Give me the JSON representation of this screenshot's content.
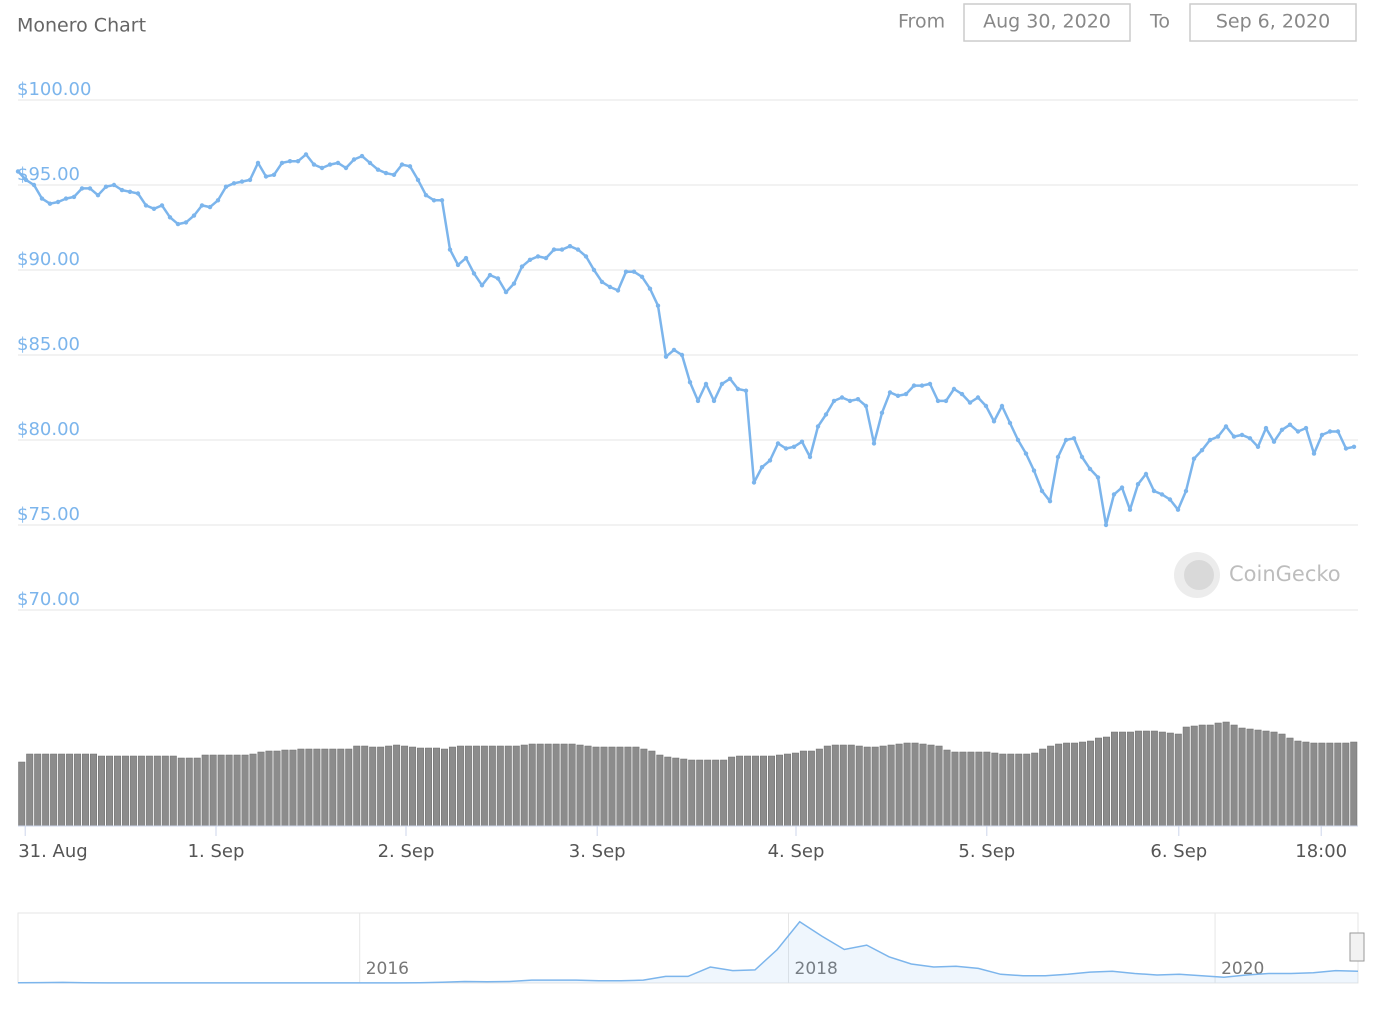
{
  "chart_data": [
    {
      "type": "line",
      "title": "Monero Chart",
      "range_from_label": "From",
      "range_from": "Aug 30, 2020",
      "range_to_label": "To",
      "range_to": "Sep 6, 2020",
      "watermark": "CoinGecko",
      "color": "#7cb5ec",
      "grid": true,
      "values": [
        95.8,
        95.3,
        95.0,
        94.2,
        93.9,
        94.0,
        94.2,
        94.3,
        94.8,
        94.8,
        94.4,
        94.9,
        95.0,
        94.7,
        94.6,
        94.5,
        93.8,
        93.6,
        93.8,
        93.1,
        92.7,
        92.8,
        93.2,
        93.8,
        93.7,
        94.1,
        94.9,
        95.1,
        95.2,
        95.3,
        96.3,
        95.5,
        95.6,
        96.3,
        96.4,
        96.4,
        96.8,
        96.2,
        96.0,
        96.2,
        96.3,
        96.0,
        96.5,
        96.7,
        96.3,
        95.9,
        95.7,
        95.6,
        96.2,
        96.1,
        95.3,
        94.4,
        94.1,
        94.1,
        91.2,
        90.3,
        90.7,
        89.8,
        89.1,
        89.7,
        89.5,
        88.7,
        89.2,
        90.2,
        90.6,
        90.8,
        90.7,
        91.2,
        91.2,
        91.4,
        91.2,
        90.8,
        90.0,
        89.3,
        89.0,
        88.8,
        89.9,
        89.9,
        89.6,
        88.9,
        87.9,
        84.9,
        85.3,
        85.0,
        83.4,
        82.3,
        83.3,
        82.3,
        83.3,
        83.6,
        83.0,
        82.9,
        77.5,
        78.4,
        78.8,
        79.8,
        79.5,
        79.6,
        79.9,
        79.0,
        80.8,
        81.5,
        82.3,
        82.5,
        82.3,
        82.4,
        82.0,
        79.8,
        81.6,
        82.8,
        82.6,
        82.7,
        83.2,
        83.2,
        83.3,
        82.3,
        82.3,
        83.0,
        82.7,
        82.2,
        82.5,
        82.0,
        81.1,
        82.0,
        81.0,
        80.0,
        79.2,
        78.2,
        77.0,
        76.4,
        79.0,
        80.0,
        80.1,
        79.0,
        78.3,
        77.8,
        75.0,
        76.8,
        77.2,
        75.9,
        77.4,
        78.0,
        77.0,
        76.8,
        76.5,
        75.9,
        77.0,
        78.9,
        79.4,
        80.0,
        80.2,
        80.8,
        80.2,
        80.3,
        80.1,
        79.6,
        80.7,
        79.9,
        80.6,
        80.9,
        80.5,
        80.7,
        79.2,
        80.3,
        80.5,
        80.5,
        79.5,
        79.6
      ],
      "ylim": [
        70,
        100
      ],
      "yticks": [
        {
          "value": 70,
          "label": "$70.00"
        },
        {
          "value": 75,
          "label": "$75.00"
        },
        {
          "value": 80,
          "label": "$80.00"
        },
        {
          "value": 85,
          "label": "$85.00"
        },
        {
          "value": 90,
          "label": "$90.00"
        },
        {
          "value": 95,
          "label": "$95.00"
        },
        {
          "value": 100,
          "label": "$100.00"
        }
      ],
      "xticks": [
        {
          "value": 0.9,
          "label": "31. Aug"
        },
        {
          "value": 24.75,
          "label": "1. Sep"
        },
        {
          "value": 48.5,
          "label": "2. Sep"
        },
        {
          "value": 72.4,
          "label": "3. Sep"
        },
        {
          "value": 97.25,
          "label": "4. Sep"
        },
        {
          "value": 121.1,
          "label": "5. Sep"
        },
        {
          "value": 145.1,
          "label": "6. Sep"
        },
        {
          "value": 162.9,
          "label": "18:00"
        }
      ]
    },
    {
      "type": "bar",
      "color": "#8c8c8c",
      "ylim": [
        0,
        110
      ],
      "values": [
        64,
        72,
        72,
        72,
        72,
        72,
        72,
        72,
        72,
        72,
        70,
        70,
        70,
        70,
        70,
        70,
        70,
        70,
        70,
        70,
        68,
        68,
        68,
        71,
        71,
        71,
        71,
        71,
        71,
        72,
        74,
        75,
        75,
        76,
        76,
        77,
        77,
        77,
        77,
        77,
        77,
        77,
        80,
        80,
        79,
        79,
        80,
        81,
        80,
        79,
        78,
        78,
        78,
        77,
        79,
        80,
        80,
        80,
        80,
        80,
        80,
        80,
        80,
        81,
        82,
        82,
        82,
        82,
        82,
        82,
        81,
        80,
        79,
        79,
        79,
        79,
        79,
        79,
        77,
        75,
        71,
        69,
        68,
        67,
        66,
        66,
        66,
        66,
        66,
        69,
        70,
        70,
        70,
        70,
        70,
        71,
        72,
        73,
        75,
        75,
        77,
        80,
        81,
        81,
        81,
        80,
        79,
        79,
        80,
        81,
        82,
        83,
        83,
        82,
        81,
        80,
        76,
        74,
        74,
        74,
        74,
        74,
        73,
        72,
        72,
        72,
        72,
        73,
        77,
        80,
        82,
        83,
        83,
        84,
        85,
        88,
        89,
        94,
        94,
        94,
        95,
        95,
        95,
        94,
        93,
        92,
        99,
        100,
        101,
        101,
        103,
        104,
        101,
        98,
        97,
        96,
        95,
        94,
        92,
        88,
        85,
        84,
        83,
        83,
        83,
        83,
        83,
        84
      ]
    },
    {
      "type": "area",
      "color": "#7cb5ec",
      "ylim": [
        0,
        480
      ],
      "values": [
        2,
        3,
        4,
        2,
        1,
        1,
        1,
        1,
        0.5,
        0.5,
        0.5,
        0.5,
        0.5,
        0.5,
        0.4,
        0.5,
        1,
        1,
        2,
        5,
        10,
        8,
        10,
        20,
        20,
        20,
        15,
        15,
        20,
        45,
        45,
        110,
        85,
        90,
        230,
        420,
        320,
        230,
        260,
        180,
        130,
        110,
        115,
        100,
        60,
        50,
        50,
        60,
        75,
        80,
        65,
        55,
        60,
        50,
        40,
        55,
        65,
        65,
        70,
        85,
        80
      ],
      "xticks": [
        {
          "value": 15.3,
          "label": "2016"
        },
        {
          "value": 34.5,
          "label": "2018"
        },
        {
          "value": 53.6,
          "label": "2020"
        }
      ]
    }
  ]
}
